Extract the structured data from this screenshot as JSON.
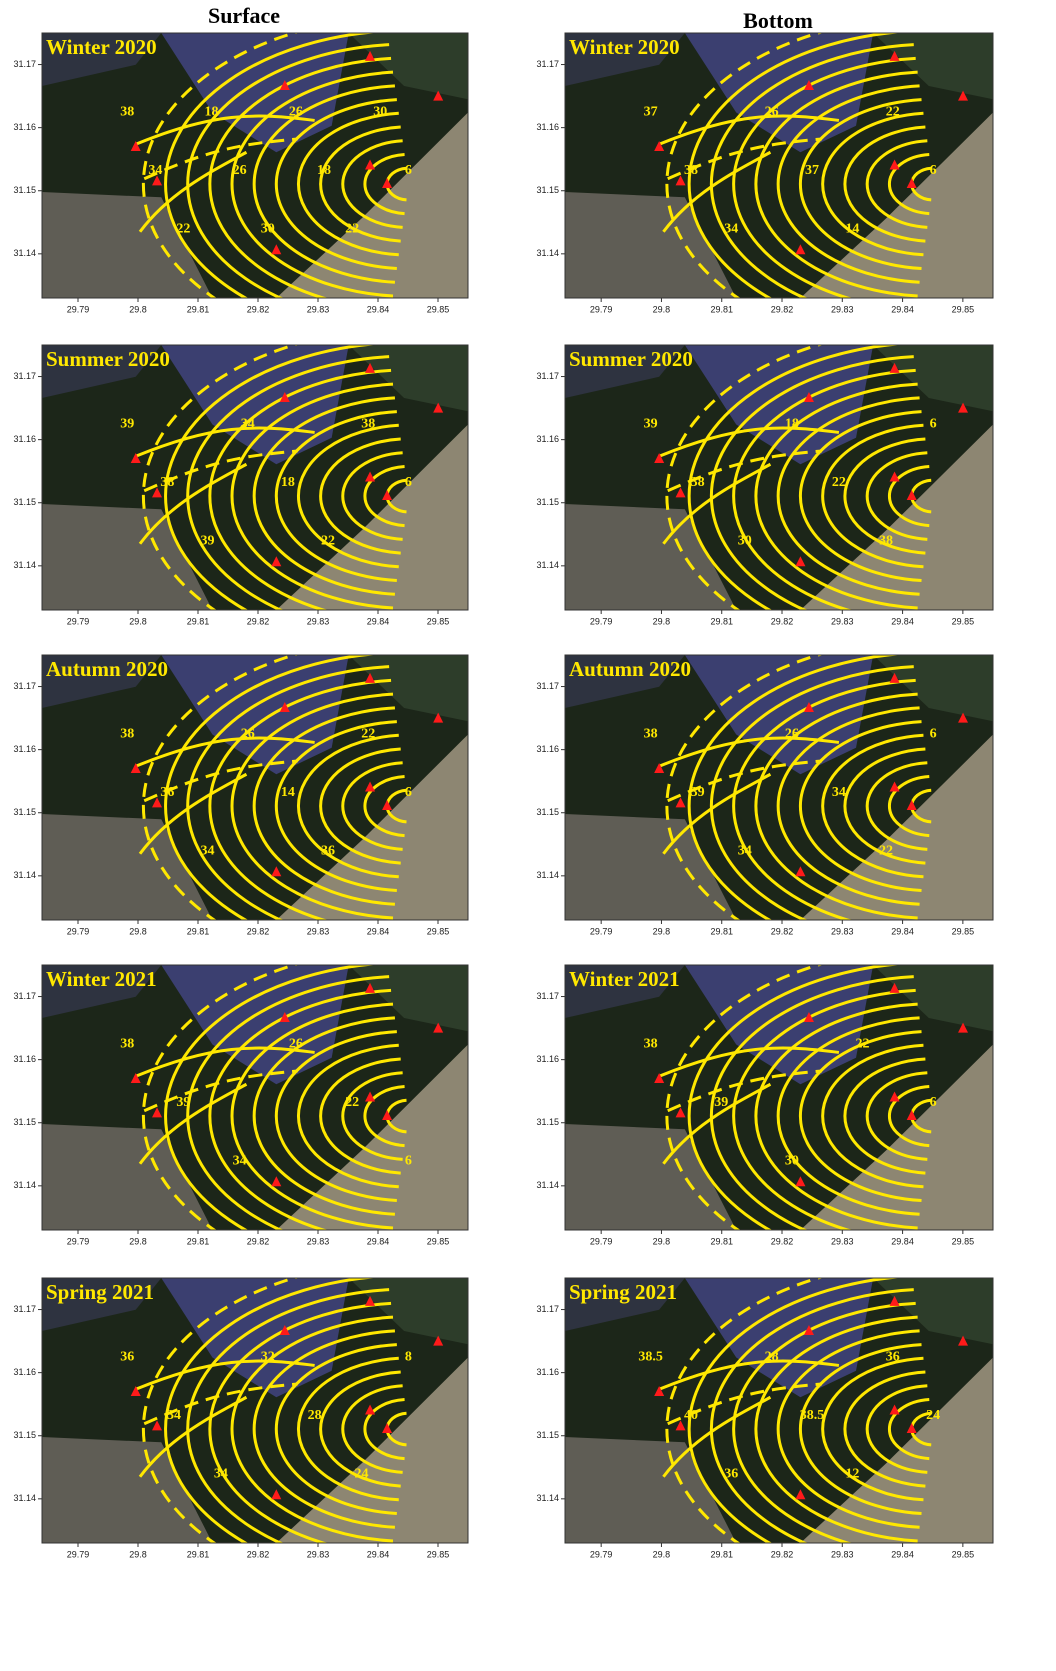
{
  "columns": [
    "Surface",
    "Bottom"
  ],
  "xlim": [
    29.784,
    29.855
  ],
  "ylim": [
    31.133,
    31.175
  ],
  "xticks": [
    29.79,
    29.8,
    29.81,
    29.82,
    29.83,
    29.84,
    29.85
  ],
  "yticks": [
    31.14,
    31.15,
    31.16,
    31.17
  ],
  "panels": [
    {
      "title": "Winter 2020",
      "contour_labels": [
        38,
        34,
        22,
        18,
        26,
        30,
        26,
        18,
        22,
        30,
        6
      ]
    },
    {
      "title": "Winter 2020",
      "contour_labels": [
        37,
        38,
        34,
        26,
        37,
        14,
        22,
        6
      ]
    },
    {
      "title": "Summer 2020",
      "contour_labels": [
        39,
        38,
        39,
        34,
        18,
        22,
        38,
        6
      ]
    },
    {
      "title": "Summer 2020",
      "contour_labels": [
        39,
        38,
        30,
        18,
        22,
        38,
        6
      ]
    },
    {
      "title": "Autumn 2020",
      "contour_labels": [
        38,
        36,
        34,
        26,
        14,
        36,
        22,
        6
      ]
    },
    {
      "title": "Autumn 2020",
      "contour_labels": [
        38,
        39,
        34,
        26,
        34,
        22,
        6
      ]
    },
    {
      "title": "Winter 2021",
      "contour_labels": [
        38,
        39,
        34,
        26,
        22,
        6
      ]
    },
    {
      "title": "Winter 2021",
      "contour_labels": [
        38,
        39,
        30,
        22,
        6
      ]
    },
    {
      "title": "Spring 2021",
      "contour_labels": [
        36,
        34,
        34,
        32,
        28,
        24,
        8
      ]
    },
    {
      "title": "Spring 2021",
      "contour_labels": [
        38.5,
        40,
        36,
        28,
        38.5,
        12,
        36,
        24
      ]
    }
  ]
}
